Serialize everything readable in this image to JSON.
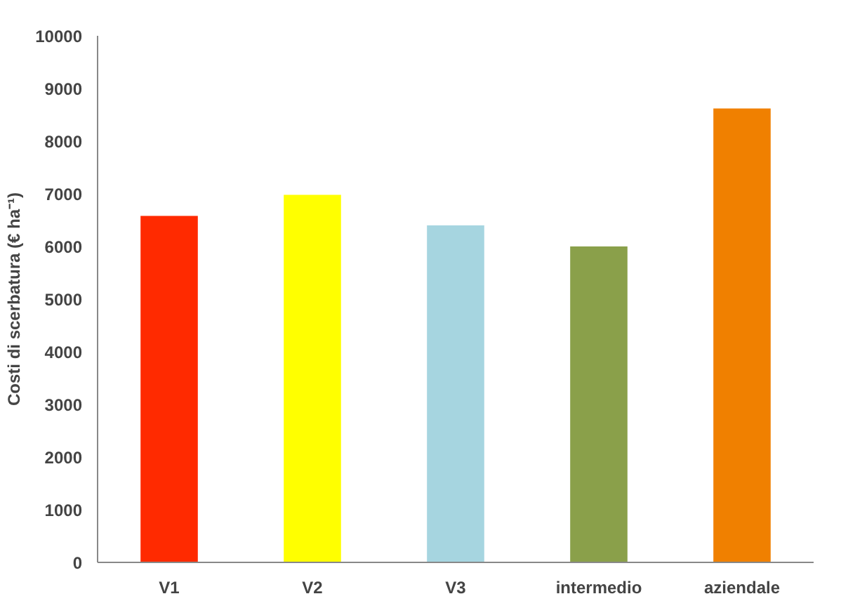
{
  "chart_data": {
    "type": "bar",
    "ylabel": "Costi di scerbatura (€ ha⁻¹)",
    "categories": [
      "V1",
      "V2",
      "V3",
      "intermedio",
      "aziendale"
    ],
    "values": [
      6580,
      6980,
      6400,
      6000,
      8620
    ],
    "colors": [
      "#ff2a00",
      "#ffff00",
      "#a6d5e0",
      "#8aa04a",
      "#f08000"
    ],
    "ylim": [
      0,
      10000
    ],
    "yticks": [
      0,
      1000,
      2000,
      3000,
      4000,
      5000,
      6000,
      7000,
      8000,
      9000,
      10000
    ]
  }
}
